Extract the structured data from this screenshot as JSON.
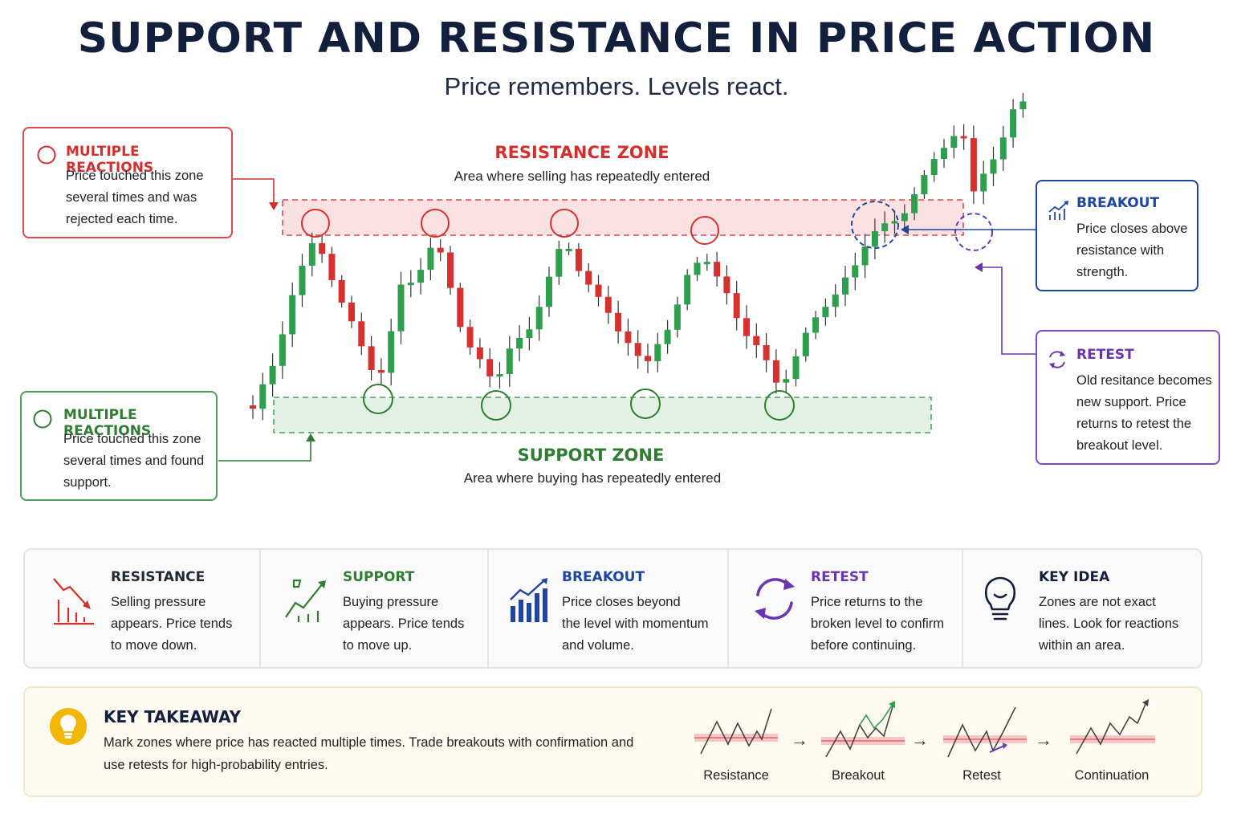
{
  "header": {
    "title": "SUPPORT AND RESISTANCE IN PRICE ACTION",
    "subtitle": "Price remembers. Levels react."
  },
  "zones": {
    "resistance": {
      "title": "RESISTANCE ZONE",
      "desc": "Area where selling has repeatedly entered"
    },
    "support": {
      "title": "SUPPORT ZONE",
      "desc": "Area where buying has repeatedly entered"
    }
  },
  "callouts": {
    "resistance_reactions": {
      "title": "MULTIPLE REACTIONS",
      "lines": [
        "Price touched this zone",
        "several times and was",
        "rejected each time."
      ]
    },
    "support_reactions": {
      "title": "MULTIPLE REACTIONS",
      "lines": [
        "Price touched this zone",
        "several times and found",
        "support."
      ]
    },
    "breakout": {
      "title": "BREAKOUT",
      "lines": [
        "Price closes above",
        "resistance with",
        "strength."
      ]
    },
    "retest": {
      "title": "RETEST",
      "lines": [
        "Old resitance becomes",
        "new support. Price",
        "returns to retest the",
        "breakout level."
      ]
    }
  },
  "legend": [
    {
      "title": "RESISTANCE",
      "icon": "resistance-down-icon",
      "color": "#d32f2f",
      "lines": [
        "Selling pressure",
        "appears. Price tends",
        "to move down."
      ]
    },
    {
      "title": "SUPPORT",
      "icon": "support-up-icon",
      "color": "#2e7d32",
      "lines": [
        "Buying pressure",
        "appears. Price tends",
        "to move up."
      ]
    },
    {
      "title": "BREAKOUT",
      "icon": "breakout-chart-icon",
      "color": "#1e46a0",
      "lines": [
        "Price closes beyond",
        "the level with momentum",
        "and volume."
      ]
    },
    {
      "title": "RETEST",
      "icon": "retest-cycle-icon",
      "color": "#6a35b0",
      "lines": [
        "Price returns to the",
        "broken level to confirm",
        "before continuing."
      ]
    },
    {
      "title": "KEY IDEA",
      "icon": "lightbulb-icon",
      "color": "#13203d",
      "lines": [
        "Zones are not exact",
        "lines. Look for reactions",
        "within an area."
      ]
    }
  ],
  "takeaway": {
    "title": "KEY TAKEAWAY",
    "lines": [
      "Mark zones where price has reacted multiple times. Trade breakouts with confirmation and",
      "use retests for high-probability entries."
    ],
    "steps": [
      "Resistance",
      "Breakout",
      "Retest",
      "Continuation"
    ]
  },
  "colors": {
    "bull": "#2e9e4f",
    "bear": "#d7312f",
    "resistance": "#d32f2f",
    "support": "#2e7d32",
    "breakout": "#1e46a0",
    "retest": "#6a35b0"
  }
}
